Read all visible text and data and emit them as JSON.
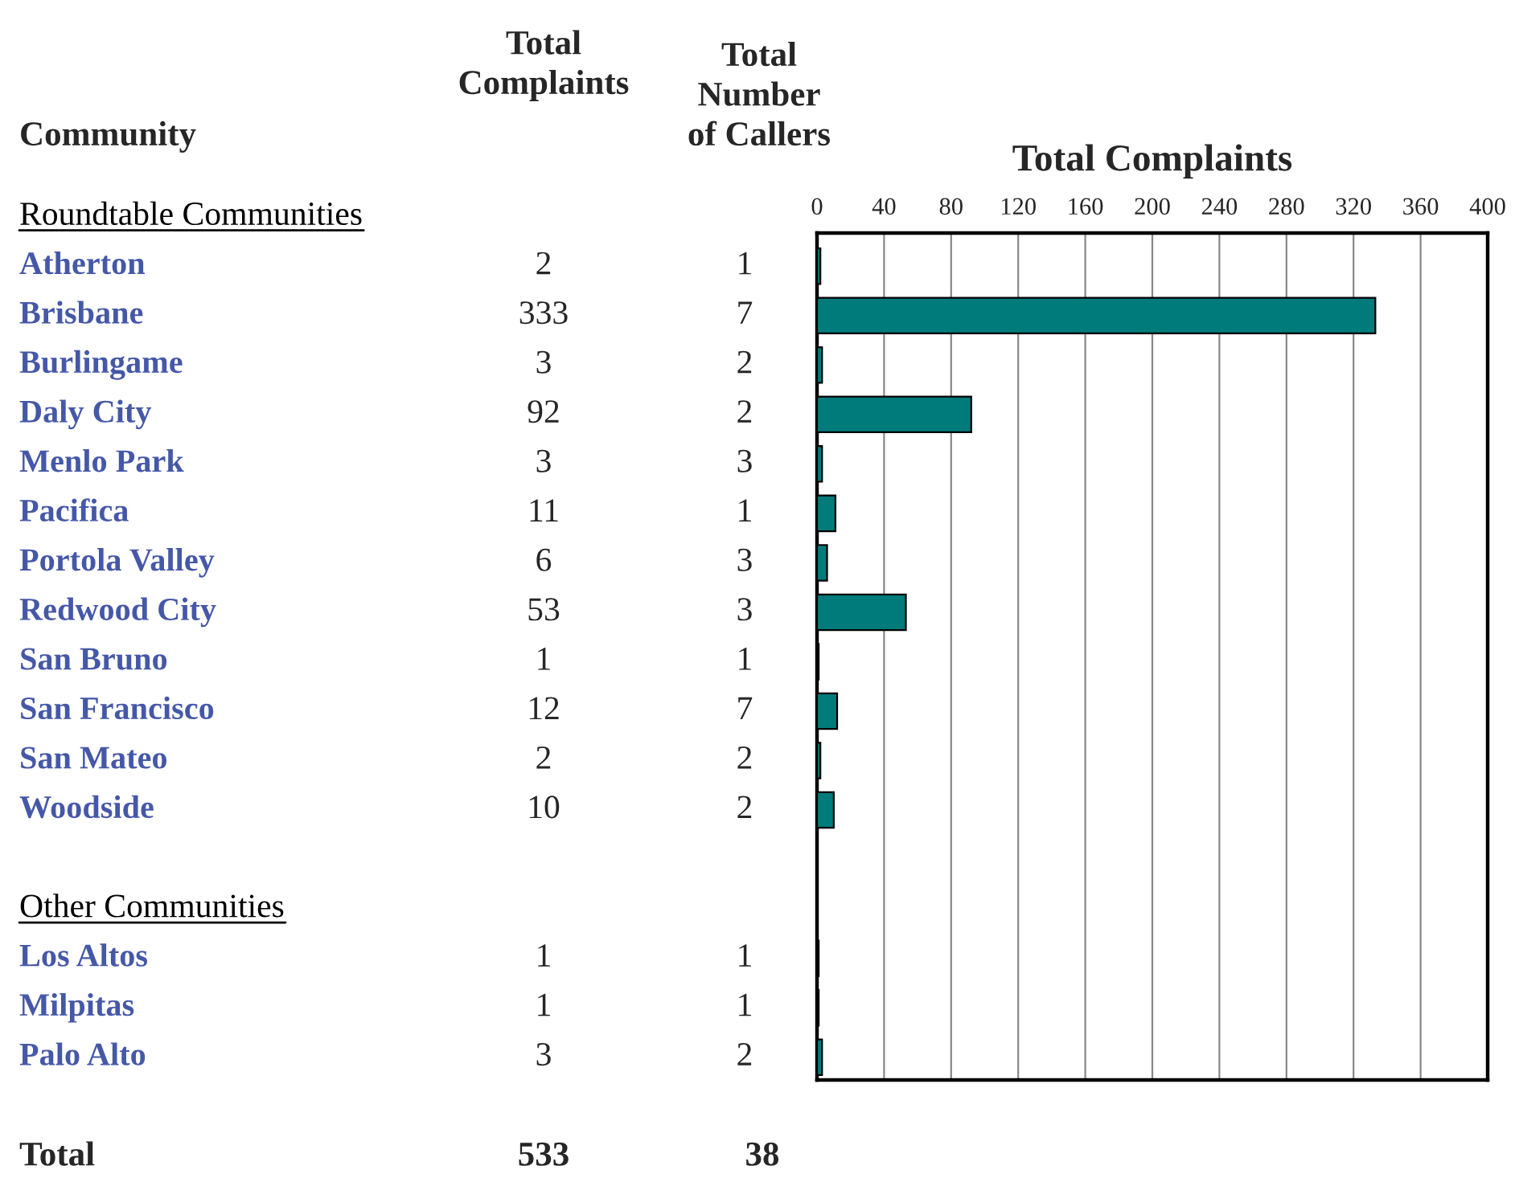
{
  "chart_data": {
    "type": "bar",
    "orientation": "horizontal",
    "title": "Total Complaints",
    "color": "#007b7b",
    "categories": [
      "Roundtable Communities",
      "Atherton",
      "Brisbane",
      "Burlingame",
      "Daly City",
      "Menlo Park",
      "Pacifica",
      "Portola Valley",
      "Redwood City",
      "San Bruno",
      "San Francisco",
      "San Mateo",
      "Woodside",
      null,
      "Other Communities",
      "Los Altos",
      "Milpitas",
      "Palo Alto"
    ],
    "values": [
      null,
      2,
      333,
      3,
      92,
      3,
      11,
      6,
      53,
      1,
      12,
      2,
      10,
      null,
      null,
      1,
      1,
      3
    ],
    "data_labels": true,
    "x2lim": [
      0,
      400
    ],
    "x2ticks": [
      0,
      40,
      80,
      120,
      160,
      200,
      240,
      280,
      320,
      360,
      400
    ],
    "grid": "x",
    "annotations": [
      "Community",
      "Total\nComplaints",
      "Total\nNumber\nof Callers",
      "Total",
      "533",
      "38",
      "1",
      "7",
      "2",
      "2",
      "3",
      "1",
      "3",
      "3",
      "1",
      "7",
      "2",
      "2",
      "1",
      "1",
      "2"
    ]
  }
}
